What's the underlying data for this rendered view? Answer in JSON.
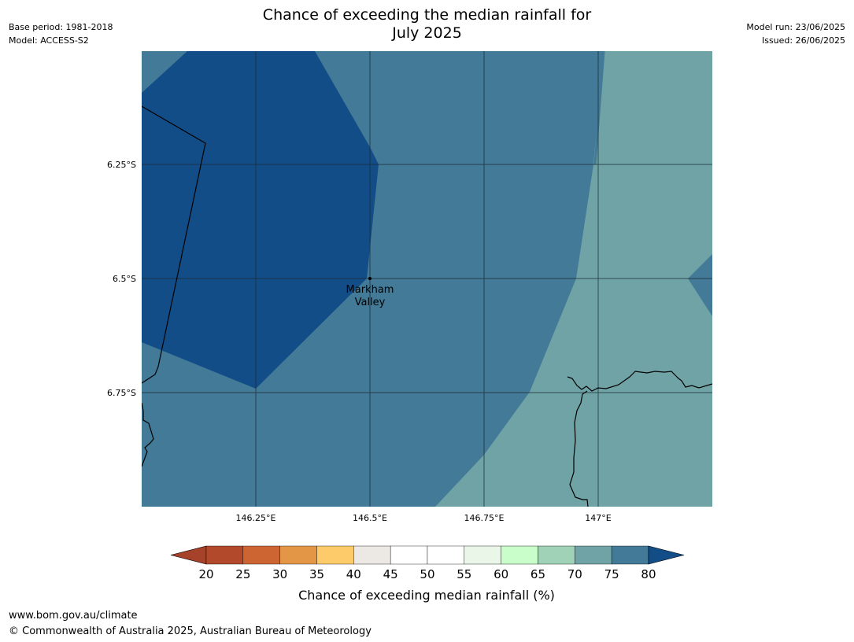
{
  "header": {
    "base_period": "Base period: 1981-2018",
    "model": "Model: ACCESS-S2",
    "title_line1": "Chance of exceeding the median rainfall for",
    "title_line2": "July 2025",
    "model_run": "Model run: 23/06/2025",
    "issued": "Issued: 26/06/2025"
  },
  "map": {
    "lat_ticks": [
      "6.25°S",
      "6.5°S",
      "6.75°S"
    ],
    "lon_ticks": [
      "146.25°E",
      "146.5°E",
      "146.75°E",
      "147°E"
    ],
    "place_label_line1": "Markham",
    "place_label_line2": "Valley",
    "region_colors": {
      "above_80": "#134d87",
      "band_75_80": "#427a97",
      "band_70_75": "#6fa3a6"
    }
  },
  "colorbar": {
    "ticks": [
      "20",
      "25",
      "30",
      "35",
      "40",
      "45",
      "50",
      "55",
      "60",
      "65",
      "70",
      "75",
      "80"
    ],
    "colors": [
      "#a6412a",
      "#b3492b",
      "#cd6533",
      "#e29646",
      "#fecb6a",
      "#ece8e4",
      "#ffffff",
      "#ffffff",
      "#e9f6e8",
      "#c9fdc9",
      "#9fd2b7",
      "#6fa3a6",
      "#427a97",
      "#134d87"
    ],
    "title": "Chance of exceeding median rainfall (%)"
  },
  "footer": {
    "url": "www.bom.gov.au/climate",
    "copyright": "© Commonwealth of Australia 2025, Australian Bureau of Meteorology"
  }
}
